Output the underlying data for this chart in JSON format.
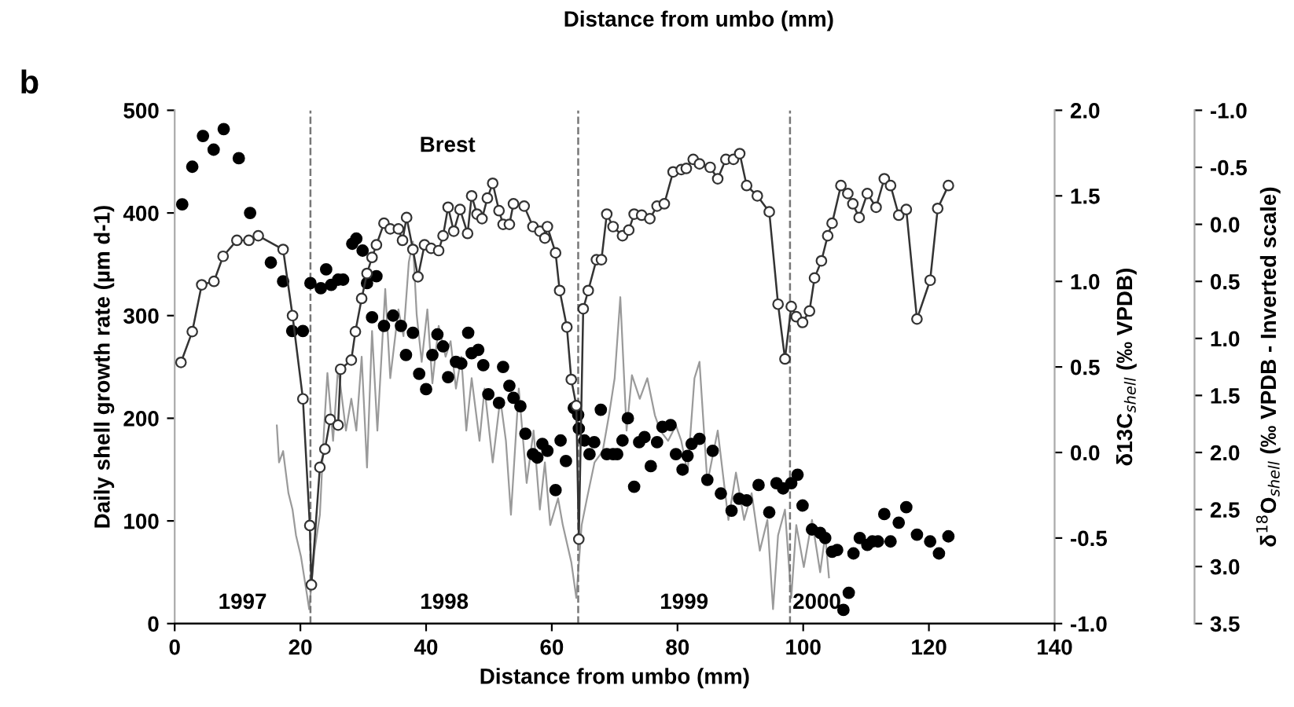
{
  "chart_data": {
    "type": "line",
    "xlabel": "Distance from umbo (mm)",
    "ylabel": "Daily shell growth rate (µm d-1)",
    "y2label": "δ13C$_{shell}$ (‰ VPDB)",
    "y3label": "δ$^{18}$O$_{shell}$ (‰ VPDB - Inverted scale)",
    "xlim": [
      0,
      140
    ],
    "xticks": [
      0,
      20,
      40,
      60,
      80,
      100,
      120,
      140
    ],
    "ylim": [
      0,
      500
    ],
    "yticks": [
      0,
      100,
      200,
      300,
      400,
      500
    ],
    "y2lim": [
      -1.0,
      2.0
    ],
    "y2ticks": [
      {
        "value": -1,
        "label": "-1.0"
      },
      {
        "value": -0.5,
        "label": "-0.5"
      },
      {
        "value": 0,
        "label": "0.0"
      },
      {
        "value": 0.5,
        "label": "0.5"
      },
      {
        "value": 1,
        "label": "1.0"
      },
      {
        "value": 1.5,
        "label": "1.5"
      },
      {
        "value": 2,
        "label": "2.0"
      }
    ],
    "y3lim": [
      3.5,
      -1.0
    ],
    "y3ticks": [
      {
        "value": -1,
        "label": "-1.0"
      },
      {
        "value": -0.5,
        "label": "-0.5"
      },
      {
        "value": 0,
        "label": "0.0"
      },
      {
        "value": 0.5,
        "label": "0.5"
      },
      {
        "value": 1,
        "label": "1.0"
      },
      {
        "value": 1.5,
        "label": "1.5"
      },
      {
        "value": 2,
        "label": "2.0"
      },
      {
        "value": 2.5,
        "label": "2.5"
      },
      {
        "value": 3,
        "label": "3.0"
      },
      {
        "value": 3.5,
        "label": "3.5"
      }
    ],
    "grid": false,
    "legend": false,
    "series": [
      {
        "axis": "y",
        "color": "#9a9a9a",
        "marker": "none",
        "line_style": "solid",
        "x": [
          16.25,
          16.6,
          17.25,
          18.1,
          18.75,
          19.3,
          20.1,
          21,
          21.4,
          22.25,
          23.1,
          23.75,
          24.3,
          25.2,
          26,
          27.25,
          28.1,
          28.9,
          29.75,
          30.6,
          31.4,
          32.25,
          33.5,
          34.3,
          35.6,
          36.4,
          37.25,
          37.9,
          38.5,
          39.3,
          40.2,
          41,
          42,
          43.1,
          43.9,
          44.75,
          45.6,
          46.4,
          47.25,
          48.5,
          49.3,
          50.6,
          51.8,
          52.7,
          53.5,
          54.75,
          56,
          57.1,
          58.1,
          58.9,
          59.75,
          61,
          61.75,
          63.1,
          63.9,
          64.75,
          65.6,
          66.8,
          68.1,
          69.1,
          70,
          70.9,
          71.9,
          72.75,
          74,
          75.2,
          76.4,
          77.25,
          78.5,
          79.75,
          80.6,
          81.6,
          82.7,
          83.5,
          84.75,
          86.4,
          88.1,
          89.3,
          90.6,
          91.8,
          93.1,
          94.3,
          95.2,
          96,
          97.1,
          98.1,
          98.9,
          100.1,
          101.4,
          102.7,
          103.5,
          104.1
        ],
        "values": [
          193,
          157,
          168,
          127,
          111,
          86,
          65,
          30,
          14,
          71,
          106,
          188,
          244,
          178,
          250,
          188,
          219,
          188,
          260,
          152,
          285,
          188,
          326,
          239,
          306,
          280,
          352,
          372,
          301,
          255,
          306,
          234,
          290,
          260,
          275,
          229,
          260,
          188,
          239,
          178,
          229,
          157,
          219,
          178,
          106,
          229,
          137,
          188,
          111,
          157,
          96,
          122,
          96,
          60,
          25,
          96,
          122,
          157,
          168,
          203,
          239,
          318,
          188,
          242,
          219,
          239,
          203,
          188,
          178,
          193,
          178,
          147,
          239,
          255,
          137,
          188,
          101,
          147,
          101,
          127,
          71,
          101,
          14,
          86,
          111,
          25,
          96,
          55,
          101,
          50,
          86,
          45
        ]
      },
      {
        "type": "scatter",
        "axis": "y2",
        "color": "#000000",
        "marker": "circle",
        "x": [
          1.2,
          2.8,
          4.5,
          6.2,
          7.8,
          10.2,
          12,
          15.3,
          17.25,
          18.7,
          20.4,
          21.6,
          23.25,
          24.1,
          24.9,
          26,
          26.8,
          28.25,
          28.9,
          29.9,
          30.6,
          31.4,
          32.1,
          33.3,
          34.75,
          36,
          36.8,
          37.9,
          38.9,
          40,
          41,
          41.8,
          42.7,
          43.5,
          44.75,
          45.6,
          46.7,
          47.25,
          48.3,
          49.1,
          49.9,
          51.6,
          52.25,
          53.25,
          53.9,
          55,
          55.8,
          57,
          57.7,
          58.5,
          59.3,
          60.6,
          61.4,
          62.25,
          63.5,
          64.2,
          64.3,
          65.2,
          66,
          66.75,
          67.8,
          68.75,
          69.75,
          70.4,
          71.25,
          72.1,
          73.1,
          73.9,
          74.75,
          75.75,
          76.75,
          77.6,
          78.9,
          79.75,
          80.8,
          81.6,
          82.25,
          83.5,
          84.75,
          85.6,
          86.9,
          88.6,
          89.8,
          91,
          92.9,
          94.6,
          95.75,
          96.8,
          98.1,
          99.1,
          99.9,
          101.4,
          102.7,
          103.5,
          104.6,
          105.4,
          106.4,
          107.25,
          108,
          109,
          110.2,
          111,
          111.9,
          112.9,
          113.9,
          115.2,
          116.4,
          118.1,
          120.2,
          121.6,
          123.1
        ],
        "values": [
          1.45,
          1.67,
          1.85,
          1.77,
          1.89,
          1.72,
          1.4,
          1.11,
          1.0,
          0.71,
          0.71,
          0.99,
          0.96,
          1.07,
          0.98,
          1.01,
          1.01,
          1.22,
          1.25,
          1.18,
          0.99,
          0.79,
          1.03,
          0.74,
          0.8,
          0.74,
          0.57,
          0.7,
          0.46,
          0.37,
          0.57,
          0.69,
          0.62,
          0.44,
          0.53,
          0.52,
          0.7,
          0.58,
          0.6,
          0.51,
          0.34,
          0.29,
          0.5,
          0.39,
          0.32,
          0.27,
          0.11,
          -0.01,
          -0.03,
          0.05,
          0.01,
          -0.22,
          0.07,
          -0.05,
          0.26,
          0.22,
          0.14,
          0.07,
          -0.01,
          0.06,
          0.25,
          -0.01,
          -0.01,
          -0.01,
          0.07,
          0.2,
          -0.2,
          0.06,
          0.09,
          -0.08,
          0.06,
          0.15,
          0.16,
          -0.01,
          -0.1,
          -0.02,
          0.05,
          0.08,
          -0.16,
          0.01,
          -0.24,
          -0.34,
          -0.27,
          -0.28,
          -0.19,
          -0.35,
          -0.18,
          -0.21,
          -0.18,
          -0.13,
          -0.31,
          -0.45,
          -0.47,
          -0.5,
          -0.58,
          -0.57,
          -0.92,
          -0.82,
          -0.59,
          -0.5,
          -0.54,
          -0.52,
          -0.52,
          -0.36,
          -0.52,
          -0.41,
          -0.32,
          -0.48,
          -0.52,
          -0.59,
          -0.49
        ]
      },
      {
        "type": "line",
        "axis": "y3",
        "color": "#333333",
        "marker": "circle",
        "line_style": "solid",
        "x": [
          1.0,
          2.8,
          4.3,
          6.25,
          7.7,
          9.9,
          11.8,
          13.3,
          17.25,
          18.75,
          20.4,
          21.5,
          21.75,
          23.1,
          23.9,
          24.75,
          26,
          26.4,
          28.1,
          28.75,
          29.75,
          30.6,
          31.4,
          32.1,
          33.3,
          34.3,
          35.6,
          36.25,
          36.9,
          37.9,
          38.7,
          39.75,
          40.8,
          42,
          42.7,
          43.5,
          44.4,
          45.4,
          46.6,
          47.25,
          48.1,
          48.9,
          49.75,
          50.6,
          51.6,
          52.25,
          53.25,
          53.9,
          55.6,
          57,
          58.1,
          58.9,
          59.3,
          60.6,
          61.25,
          62.4,
          63.1,
          63.9,
          64.3,
          65,
          65.8,
          67.1,
          67.9,
          68.75,
          69.75,
          71.25,
          72.25,
          73.1,
          74.3,
          75.6,
          76.75,
          77.9,
          79.3,
          80.6,
          81.4,
          82.5,
          83.5,
          85.2,
          86.4,
          87.7,
          88.9,
          89.9,
          91,
          92.7,
          94.6,
          96,
          97.1,
          98.1,
          98.9,
          99.9,
          101,
          101.8,
          102.9,
          103.9,
          104.6,
          106,
          107.1,
          107.9,
          108.9,
          110.2,
          111.6,
          112.9,
          113.9,
          115.2,
          116.4,
          118.1,
          120.2,
          121.4,
          123.1
        ],
        "values": [
          1.21,
          0.94,
          0.53,
          0.5,
          0.28,
          0.14,
          0.14,
          0.1,
          0.22,
          0.8,
          1.53,
          2.64,
          3.16,
          2.13,
          1.97,
          1.71,
          1.76,
          1.27,
          1.19,
          0.94,
          0.65,
          0.43,
          0.29,
          0.18,
          -0.01,
          0.04,
          0.04,
          0.14,
          -0.06,
          0.22,
          0.46,
          0.18,
          0.21,
          0.23,
          0.1,
          -0.15,
          0.06,
          -0.13,
          0.08,
          -0.25,
          -0.09,
          -0.05,
          -0.23,
          -0.36,
          -0.12,
          0.0,
          0.0,
          -0.18,
          -0.16,
          0.02,
          0.06,
          0.12,
          0.02,
          0.25,
          0.58,
          0.9,
          1.36,
          1.59,
          2.76,
          0.74,
          0.58,
          0.31,
          0.31,
          -0.09,
          0.02,
          0.1,
          0.05,
          -0.09,
          -0.08,
          -0.05,
          -0.16,
          -0.18,
          -0.46,
          -0.48,
          -0.49,
          -0.57,
          -0.53,
          -0.5,
          -0.4,
          -0.57,
          -0.57,
          -0.62,
          -0.34,
          -0.25,
          -0.11,
          0.7,
          1.18,
          0.72,
          0.81,
          0.86,
          0.76,
          0.47,
          0.32,
          0.1,
          -0.01,
          -0.34,
          -0.27,
          -0.18,
          -0.06,
          -0.27,
          -0.15,
          -0.4,
          -0.34,
          -0.08,
          -0.13,
          0.83,
          0.49,
          -0.14,
          -0.34
        ]
      }
    ],
    "ref_lines": [
      {
        "axis": "x",
        "value": 21.6,
        "color": "#777777",
        "line_style": "dashed"
      },
      {
        "axis": "x",
        "value": 64.2,
        "color": "#777777",
        "line_style": "dashed"
      },
      {
        "axis": "x",
        "value": 97.9,
        "color": "#777777",
        "line_style": "dashed"
      }
    ],
    "annotations": [
      "Distance from umbo (mm)",
      "b",
      "Brest",
      "1997",
      "1998",
      "1999",
      "2000"
    ]
  }
}
